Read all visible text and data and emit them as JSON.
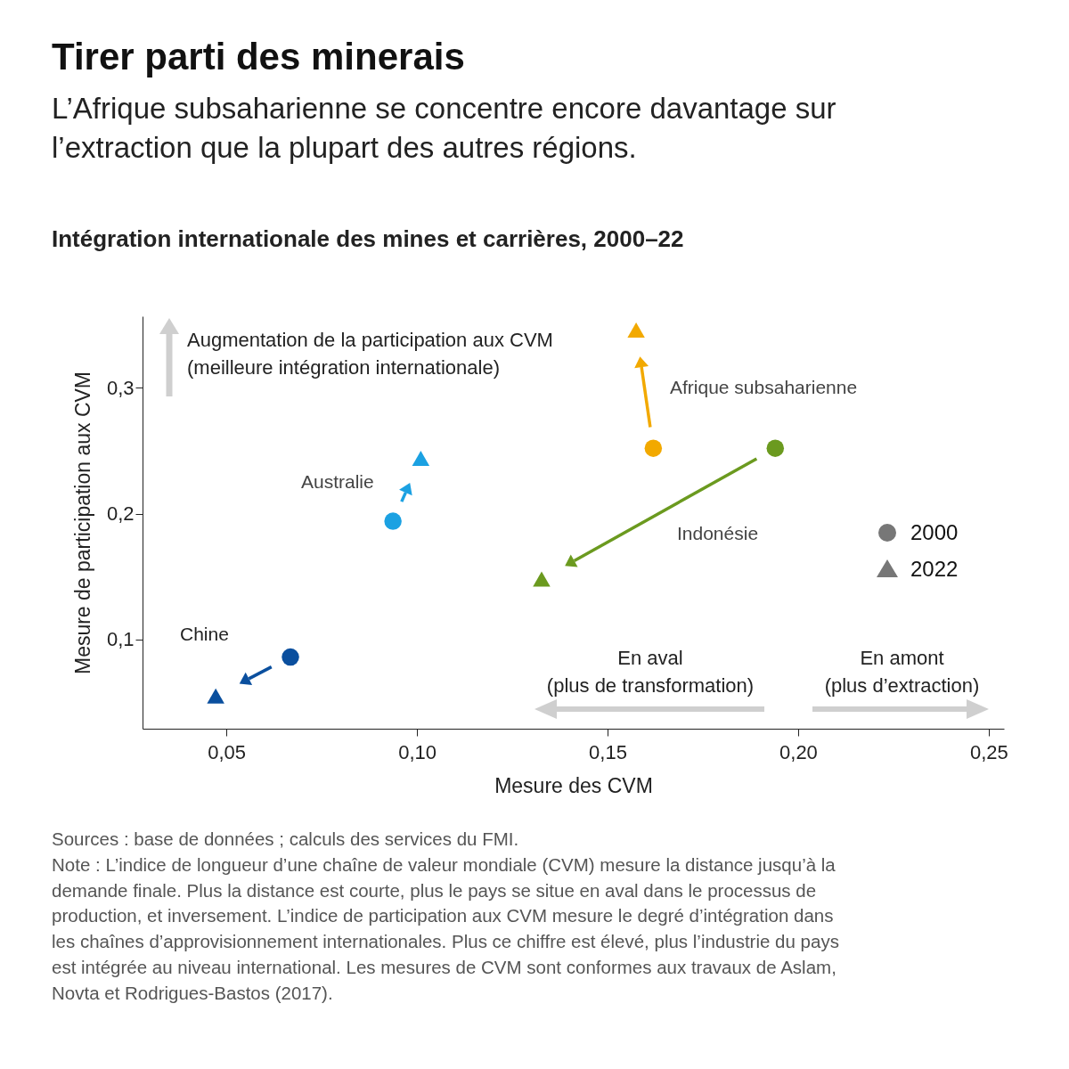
{
  "chart_data": {
    "type": "scatter",
    "title": "Tirer parti des minerais",
    "subtitle": "L’Afrique subsaharienne se concentre encore davantage sur l’extraction que la plupart des autres régions.",
    "xlabel": "Mesure des CVM",
    "ylabel": "Mesure de participation aux CVM",
    "xlim": [
      0.028,
      0.254
    ],
    "ylim": [
      0.029,
      0.357
    ],
    "xticks": [
      {
        "value": 0.05,
        "label": "0,05"
      },
      {
        "value": 0.1,
        "label": "0,10"
      },
      {
        "value": 0.15,
        "label": "0,15"
      },
      {
        "value": 0.2,
        "label": "0,20"
      },
      {
        "value": 0.25,
        "label": "0,25"
      }
    ],
    "yticks": [
      {
        "value": 0.1,
        "label": "0,1"
      },
      {
        "value": 0.2,
        "label": "0,2"
      },
      {
        "value": 0.3,
        "label": "0,3"
      }
    ],
    "legend": "right",
    "series": [
      {
        "name": "2000",
        "marker": "circle",
        "color": "#777777",
        "x": [
          0.0668,
          0.0937,
          0.162,
          0.194
        ],
        "values": [
          0.086,
          0.194,
          0.252,
          0.252
        ],
        "colors": [
          "#0a4f9e",
          "#1ba1e2",
          "#f2a900",
          "#6b9a1f"
        ]
      },
      {
        "name": "2022",
        "marker": "triangle",
        "color": "#777777",
        "x": [
          0.0472,
          0.101,
          0.1575,
          0.1327
        ],
        "values": [
          0.055,
          0.244,
          0.346,
          0.148
        ],
        "colors": [
          "#0a4f9e",
          "#1ba1e2",
          "#f2a900",
          "#6b9a1f"
        ]
      }
    ],
    "annotations": [
      "Intégration internationale des mines et carrières, 2000–22",
      "Augmentation de la participation aux CVM\n(meilleure intégration internationale)",
      "En aval\n(plus de transformation)",
      "En amont\n(plus d’extraction)",
      "Chine",
      "Australie",
      "Afrique subsaharienne",
      "Indonésie",
      "Sources : base de données ; calculs des services du FMI.",
      "Note : L’indice de longueur d’une chaîne de valeur mondiale (CVM) mesure la distance jusqu’à la demande finale. Plus la distance est courte, plus le pays se situe en aval dans le processus de production, et inversement. L’indice de participation aux CVM mesure le degré d’intégration dans les chaînes d’approvisionnement internationales. Plus ce chiffre est élevé, plus l’industrie du pays est intégrée au niveau international. Les mesures de CVM sont conformes aux travaux de Aslam, Novta et Rodrigues-Bastos (2017)."
    ]
  }
}
